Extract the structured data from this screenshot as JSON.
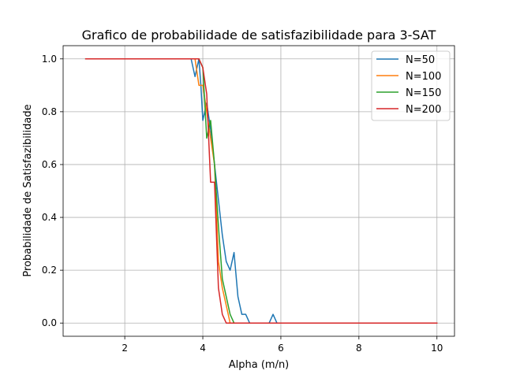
{
  "chart_data": {
    "type": "line",
    "title": "Grafico de probabilidade de satisfazibilidade para 3-SAT",
    "xlabel": "Alpha (m/n)",
    "ylabel": "Probabilidade de Satisfazibilidade",
    "xlim": [
      0.42,
      10.45
    ],
    "ylim": [
      -0.05,
      1.05
    ],
    "xticks": [
      2,
      4,
      6,
      8,
      10
    ],
    "yticks": [
      0.0,
      0.2,
      0.4,
      0.6,
      0.8,
      1.0
    ],
    "xtick_labels": [
      "2",
      "4",
      "6",
      "8",
      "10"
    ],
    "ytick_labels": [
      "0.0",
      "0.2",
      "0.4",
      "0.6",
      "0.8",
      "1.0"
    ],
    "grid": true,
    "legend_position": "top-right",
    "series": [
      {
        "name": "N=50",
        "color": "#1f77b4",
        "x": [
          1.0,
          3.7,
          3.8,
          3.9,
          3.95,
          4.0,
          4.1,
          4.2,
          4.3,
          4.4,
          4.5,
          4.6,
          4.7,
          4.8,
          4.9,
          5.0,
          5.1,
          5.2,
          5.7,
          5.8,
          5.9,
          10.0
        ],
        "y": [
          1.0,
          1.0,
          0.933,
          1.0,
          0.9,
          0.767,
          0.833,
          0.733,
          0.6,
          0.467,
          0.333,
          0.233,
          0.2,
          0.267,
          0.1,
          0.033,
          0.033,
          0.0,
          0.0,
          0.033,
          0.0,
          0.0
        ]
      },
      {
        "name": "N=100",
        "color": "#ff7f0e",
        "x": [
          1.0,
          3.8,
          3.9,
          4.0,
          4.1,
          4.2,
          4.3,
          4.4,
          4.5,
          4.6,
          4.7,
          4.8,
          10.0
        ],
        "y": [
          1.0,
          1.0,
          0.9,
          0.9,
          0.8,
          0.7,
          0.6,
          0.233,
          0.133,
          0.067,
          0.0,
          0.0,
          0.0
        ]
      },
      {
        "name": "N=150",
        "color": "#2ca02c",
        "x": [
          1.0,
          3.8,
          3.9,
          4.0,
          4.1,
          4.2,
          4.3,
          4.4,
          4.5,
          4.6,
          4.7,
          4.8,
          10.0
        ],
        "y": [
          1.0,
          1.0,
          1.0,
          0.967,
          0.7,
          0.767,
          0.6,
          0.367,
          0.167,
          0.1,
          0.033,
          0.0,
          0.0
        ]
      },
      {
        "name": "N=200",
        "color": "#d62728",
        "x": [
          1.0,
          3.9,
          4.0,
          4.1,
          4.2,
          4.3,
          4.4,
          4.5,
          4.6,
          4.7,
          10.0
        ],
        "y": [
          1.0,
          1.0,
          0.967,
          0.867,
          0.533,
          0.533,
          0.133,
          0.033,
          0.0,
          0.0,
          0.0
        ]
      }
    ]
  }
}
